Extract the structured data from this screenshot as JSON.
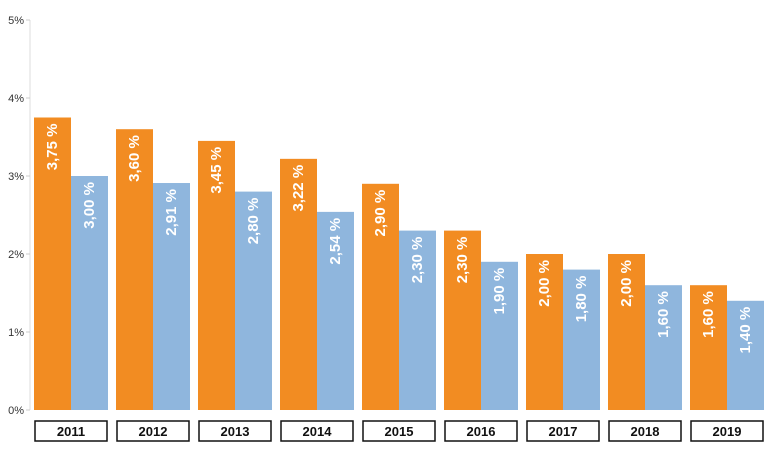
{
  "chart_data": {
    "type": "bar",
    "categories": [
      "2011",
      "2012",
      "2013",
      "2014",
      "2015",
      "2016",
      "2017",
      "2018",
      "2019"
    ],
    "series": [
      {
        "color": "#f28c22",
        "values": [
          3.75,
          3.6,
          3.45,
          3.22,
          2.9,
          2.3,
          2.0,
          2.0,
          1.6
        ],
        "labels": [
          "3,75 %",
          "3,60 %",
          "3,45 %",
          "3,22 %",
          "2,90 %",
          "2,30 %",
          "2,00 %",
          "2,00 %",
          "1,60 %"
        ]
      },
      {
        "color": "#8fb6dd",
        "values": [
          3.0,
          2.91,
          2.8,
          2.54,
          2.3,
          1.9,
          1.8,
          1.6,
          1.4
        ],
        "labels": [
          "3,00 %",
          "2,91 %",
          "2,80 %",
          "2,54 %",
          "2,30 %",
          "1,90 %",
          "1,80 %",
          "1,60 %",
          "1,40 %"
        ]
      }
    ],
    "yticks": [
      "0%",
      "1%",
      "2%",
      "3%",
      "4%",
      "5%"
    ],
    "ylim": [
      0,
      5
    ],
    "grid": false,
    "legend": "none",
    "data_labels": "vertical inside bars",
    "category_labels": "boxed below bars"
  }
}
